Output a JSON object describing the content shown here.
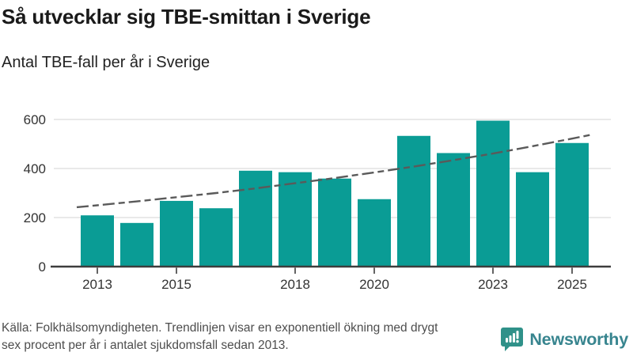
{
  "header": {
    "title": "Så utvecklar sig TBE-smittan i Sverige",
    "subtitle": "Antal TBE-fall per år i Sverige"
  },
  "chart_data": {
    "type": "bar",
    "title": "Antal TBE-fall per år i Sverige",
    "categories": [
      2013,
      2014,
      2015,
      2016,
      2017,
      2018,
      2019,
      2020,
      2021,
      2022,
      2023,
      2024,
      2025
    ],
    "values": [
      209,
      178,
      268,
      238,
      391,
      385,
      359,
      275,
      533,
      463,
      595,
      385,
      504
    ],
    "trend": {
      "name": "Trendlinje (exponentiell, ca 6% per år)",
      "style": "dashed",
      "values": [
        250,
        266,
        283,
        300,
        319,
        340,
        361,
        384,
        408,
        434,
        461,
        491,
        522
      ]
    },
    "xlabel": "",
    "ylabel": "",
    "ylim": [
      0,
      620
    ],
    "y_ticks": [
      0,
      200,
      400,
      600
    ],
    "x_ticks": [
      2013,
      2015,
      2018,
      2020,
      2023,
      2025
    ],
    "grid": "horizontal",
    "legend": "none",
    "bar_color": "#0a9c95",
    "trend_color": "#5a5a5a",
    "grid_color": "#dcdcdc",
    "axis_color": "#3d3d3d"
  },
  "footer": {
    "source_lines": [
      "Källa: Folkhälsomyndigheten. Trendlinjen visar en exponentiell ökning med drygt",
      "sex procent per år i antalet sjukdomsfall sedan 2013."
    ]
  },
  "branding": {
    "logo_label": "Newsworthy",
    "logo_color": "#38858f"
  }
}
